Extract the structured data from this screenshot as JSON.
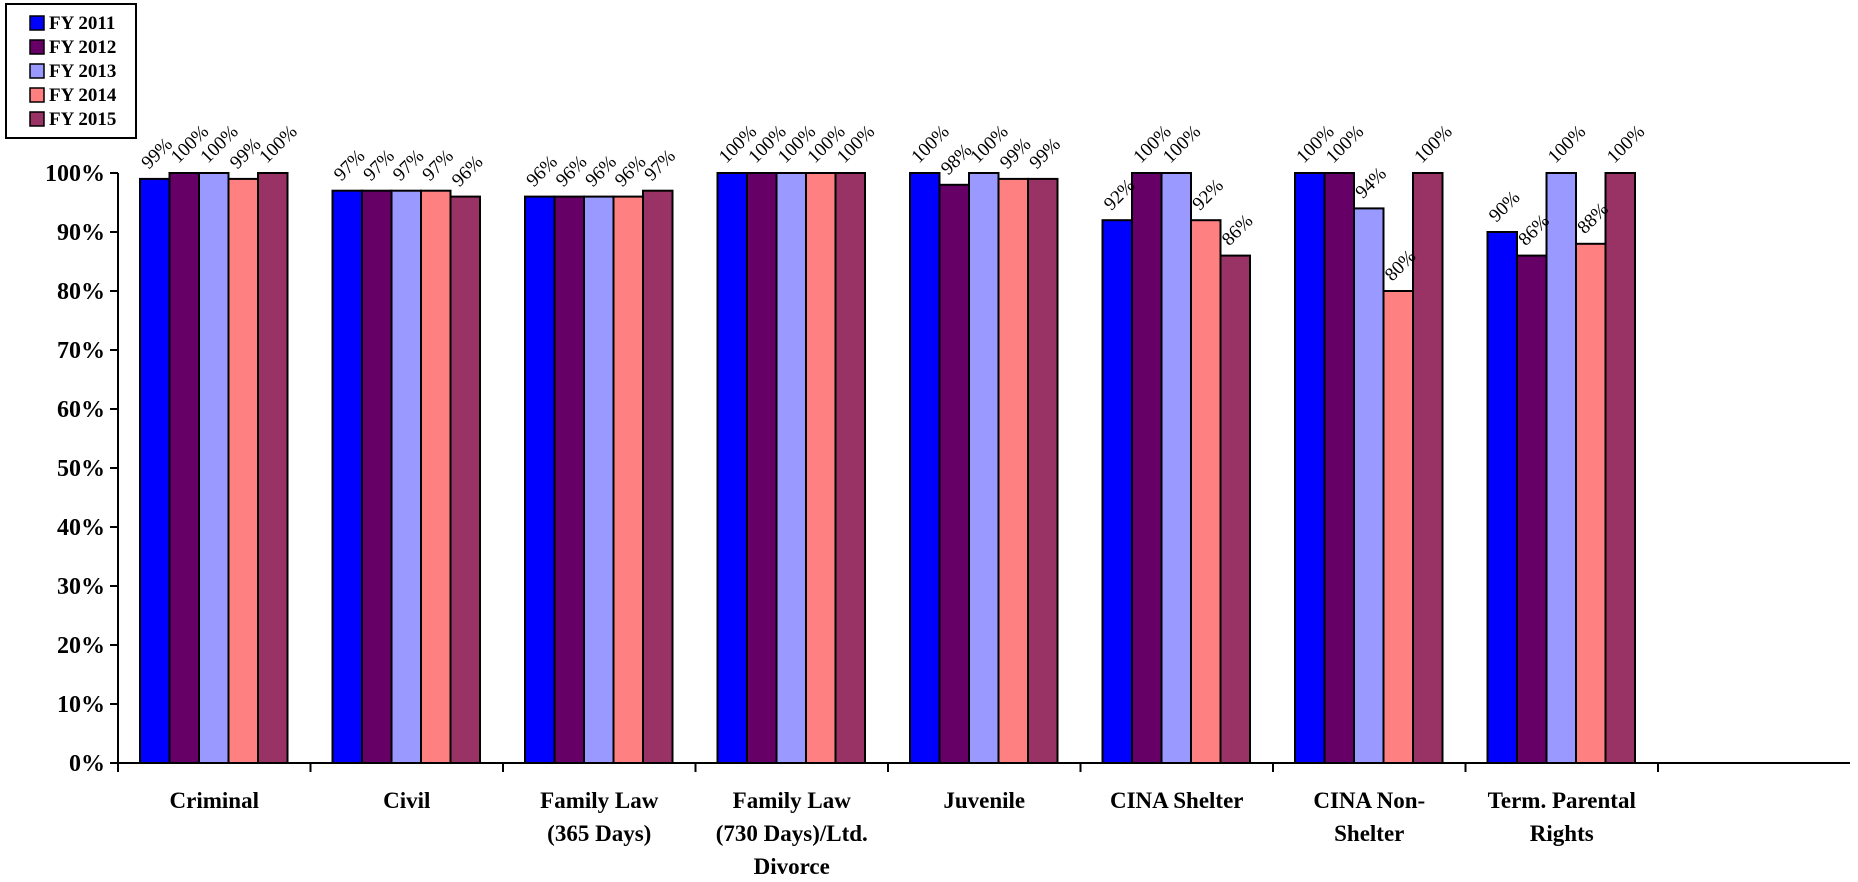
{
  "chart_data": {
    "type": "bar",
    "title": "",
    "xlabel": "",
    "ylabel": "",
    "ylim": [
      0,
      100
    ],
    "y_ticks": [
      "0%",
      "10%",
      "20%",
      "30%",
      "40%",
      "50%",
      "60%",
      "70%",
      "80%",
      "90%",
      "100%"
    ],
    "grid": false,
    "legend_position": "top-left",
    "categories": [
      [
        "Criminal"
      ],
      [
        "Civil"
      ],
      [
        "Family Law",
        "(365 Days)"
      ],
      [
        "Family Law",
        "(730 Days)/Ltd.",
        "Divorce"
      ],
      [
        "Juvenile"
      ],
      [
        "CINA Shelter"
      ],
      [
        "CINA Non-",
        "Shelter"
      ],
      [
        "Term. Parental",
        "Rights"
      ]
    ],
    "series": [
      {
        "name": "FY 2011",
        "color": "#0000FF",
        "values": [
          99,
          97,
          96,
          100,
          100,
          92,
          100,
          90
        ]
      },
      {
        "name": "FY 2012",
        "color": "#660066",
        "values": [
          100,
          97,
          96,
          100,
          98,
          100,
          100,
          86
        ]
      },
      {
        "name": "FY 2013",
        "color": "#9999FF",
        "values": [
          100,
          97,
          96,
          100,
          100,
          100,
          94,
          100
        ]
      },
      {
        "name": "FY 2014",
        "color": "#FF8080",
        "values": [
          99,
          97,
          96,
          100,
          99,
          92,
          80,
          88
        ]
      },
      {
        "name": "FY 2015",
        "color": "#993366",
        "values": [
          100,
          96,
          97,
          100,
          99,
          86,
          100,
          100
        ]
      }
    ],
    "value_suffix": "%"
  }
}
